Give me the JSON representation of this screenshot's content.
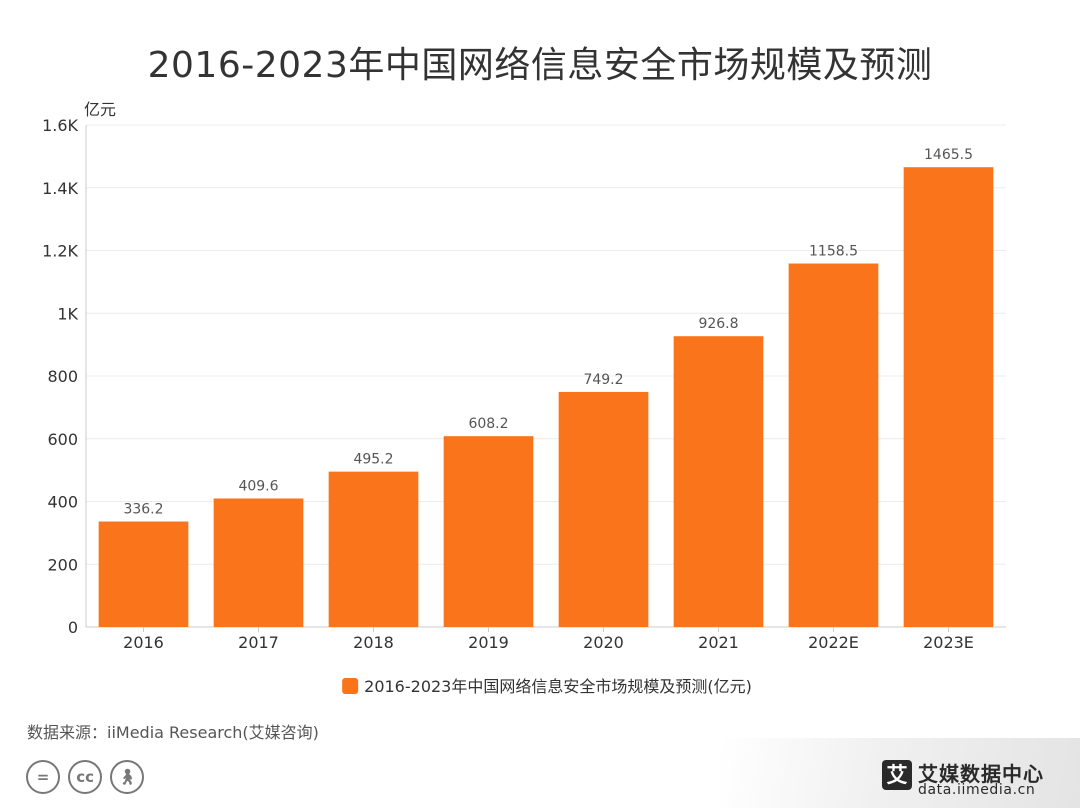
{
  "title": "2016-2023年中国网络信息安全市场规模及预测",
  "source_text": "数据来源：iiMedia Research(艾媒咨询)",
  "brand": {
    "icon_char": "艾",
    "name": "艾媒数据中心",
    "url": "data.iimedia.cn"
  },
  "license_icons": [
    "equals-icon",
    "cc-icon",
    "person-icon"
  ],
  "colors": {
    "bar": "#fa741c",
    "grid": "#ececec",
    "axis": "#cccccc",
    "text": "#333333"
  },
  "chart_data": {
    "type": "bar",
    "title": "2016-2023年中国网络信息安全市场规模及预测",
    "ylabel": "亿元",
    "xlabel": "",
    "categories": [
      "2016",
      "2017",
      "2018",
      "2019",
      "2020",
      "2021",
      "2022E",
      "2023E"
    ],
    "series": [
      {
        "name": "2016-2023年中国网络信息安全市场规模及预测(亿元)",
        "values": [
          336.2,
          409.6,
          495.2,
          608.2,
          749.2,
          926.8,
          1158.5,
          1465.5
        ]
      }
    ],
    "ylim": [
      0,
      1600
    ],
    "yticks": [
      0,
      200,
      400,
      600,
      800,
      1000,
      1200,
      1400,
      1600
    ],
    "ytick_labels": [
      "0",
      "200",
      "400",
      "600",
      "800",
      "1K",
      "1.2K",
      "1.4K",
      "1.6K"
    ],
    "data_labels": [
      "336.2",
      "409.6",
      "495.2",
      "608.2",
      "749.2",
      "926.8",
      "1158.5",
      "1465.5"
    ],
    "grid": true,
    "legend_position": "bottom-center"
  }
}
